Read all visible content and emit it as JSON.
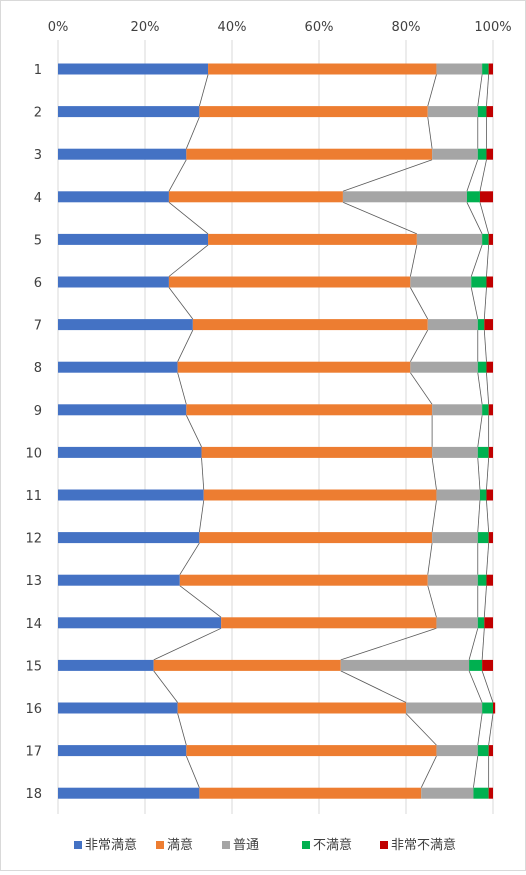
{
  "chart_data": {
    "type": "bar",
    "orientation": "horizontal",
    "stacked": "percent",
    "series_lines": true,
    "grid": true,
    "legend_position": "bottom",
    "title": "",
    "xlabel": "",
    "ylabel": "",
    "xlim": [
      0,
      100
    ],
    "x_tick_labels": [
      "0%",
      "20%",
      "40%",
      "60%",
      "80%",
      "100%"
    ],
    "categories": [
      "1",
      "2",
      "3",
      "4",
      "5",
      "6",
      "7",
      "8",
      "9",
      "10",
      "11",
      "12",
      "13",
      "14",
      "15",
      "16",
      "17",
      "18"
    ],
    "series": [
      {
        "name": "非常満意",
        "color": "#4472C4",
        "values": [
          34.5,
          32.5,
          29.5,
          25.5,
          34.5,
          25.5,
          31,
          27.5,
          29.5,
          33,
          33.5,
          32.5,
          28,
          37.5,
          22,
          27.5,
          29.5,
          32.5
        ]
      },
      {
        "name": "満意",
        "color": "#ED7D31",
        "values": [
          52.5,
          52.5,
          56.5,
          40,
          48,
          55.5,
          54,
          53.5,
          56.5,
          53,
          53.5,
          53.5,
          57,
          49.5,
          43,
          52.5,
          57.5,
          51
        ]
      },
      {
        "name": "普通",
        "color": "#A5A5A5",
        "values": [
          10.5,
          11.5,
          10.5,
          28.5,
          15,
          14,
          11.5,
          15.5,
          11.5,
          10.5,
          10,
          10.5,
          11.5,
          9.5,
          29.5,
          17.5,
          9.5,
          12
        ]
      },
      {
        "name": "不満意",
        "color": "#00B050",
        "values": [
          1.5,
          2,
          2,
          3,
          1.5,
          3.5,
          1.5,
          2,
          1.5,
          2.5,
          1.5,
          2.5,
          2,
          1.5,
          3,
          2.5,
          2.5,
          3.5
        ]
      },
      {
        "name": "非常不満意",
        "color": "#C00000",
        "values": [
          1,
          1.5,
          1.5,
          3,
          1,
          1.5,
          2,
          1.5,
          1,
          1,
          1.5,
          1,
          1.5,
          2,
          2.5,
          0.5,
          1,
          1
        ]
      }
    ]
  }
}
